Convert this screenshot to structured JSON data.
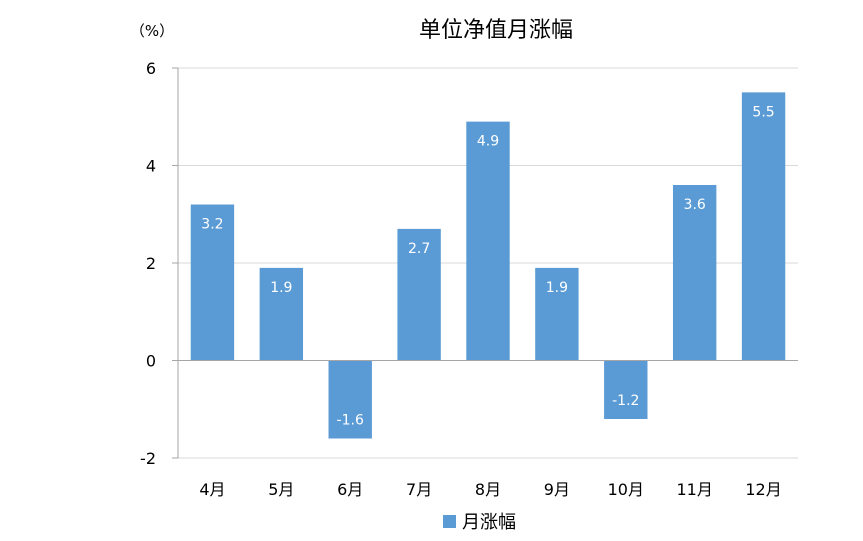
{
  "chart_data": {
    "type": "bar",
    "title": "单位净值月涨幅",
    "unit_label": "（%）",
    "categories": [
      "4月",
      "5月",
      "6月",
      "7月",
      "8月",
      "9月",
      "10月",
      "11月",
      "12月"
    ],
    "series": [
      {
        "name": "月涨幅",
        "values": [
          3.2,
          1.9,
          -1.6,
          2.7,
          4.9,
          1.9,
          -1.2,
          3.6,
          5.5
        ]
      }
    ],
    "data_labels": [
      "3.2",
      "1.9",
      "-1.6",
      "2.7",
      "4.9",
      "1.9",
      "-1.2",
      "3.6",
      "5.5"
    ],
    "ylim": [
      -2,
      6
    ],
    "yticks": [
      -2,
      0,
      2,
      4,
      6
    ],
    "ytick_labels": [
      "-2",
      "0",
      "2",
      "4",
      "6"
    ],
    "grid": true,
    "legend_position": "bottom",
    "bar_color": "#5B9BD5",
    "grid_color": "#D9D9D9",
    "axis_color": "#A6A6A6"
  }
}
